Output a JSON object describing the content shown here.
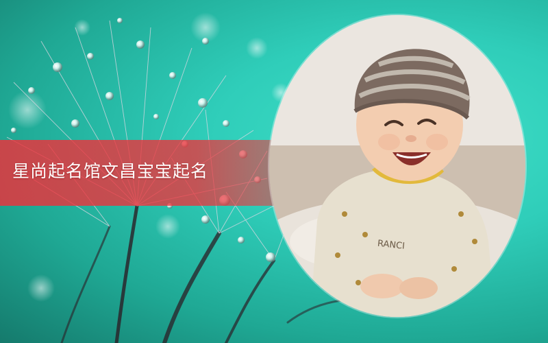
{
  "banner": {
    "title": "星尚起名馆文昌宝宝起名"
  },
  "colors": {
    "background": "#2fcdb9",
    "banner": "#ee303a",
    "text": "#ffffff"
  },
  "photo": {
    "shirt_print": "RANCI"
  }
}
